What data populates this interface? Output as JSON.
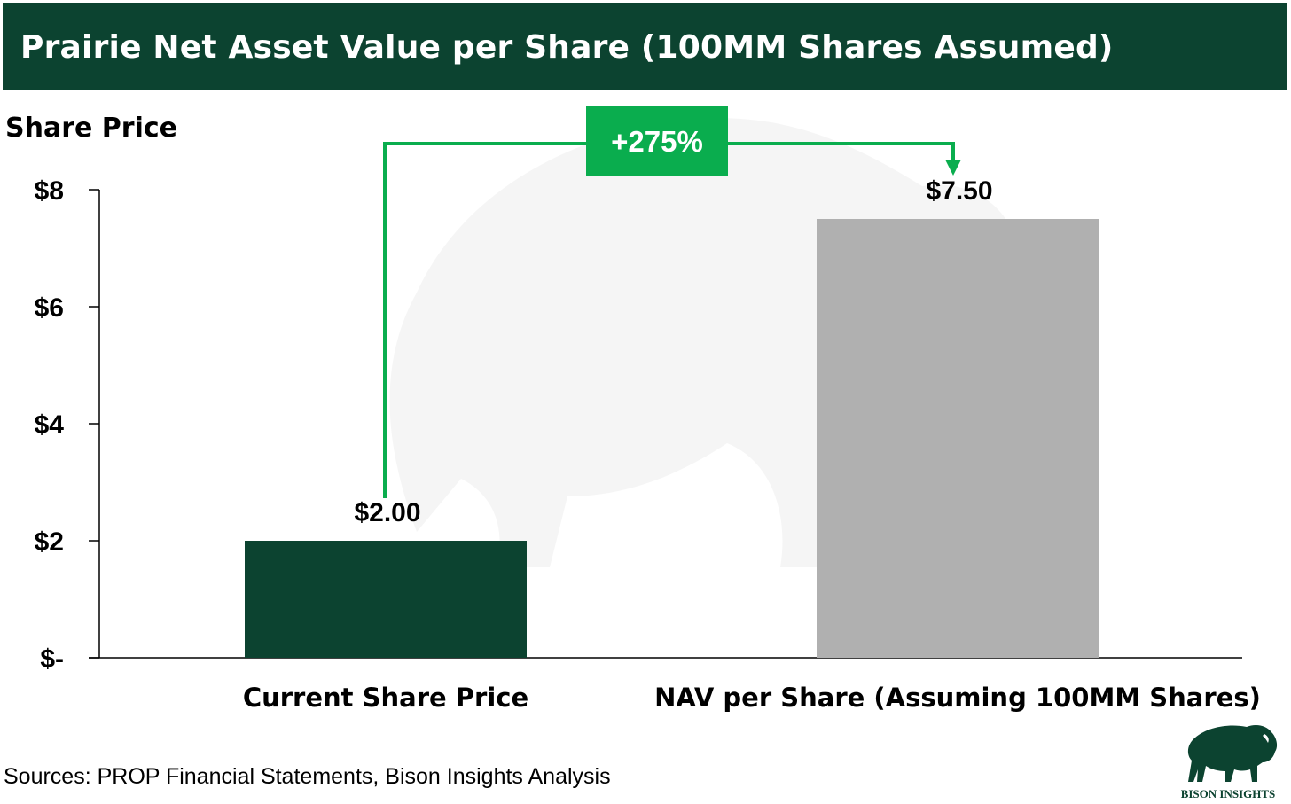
{
  "title": "Prairie Net Asset Value per Share (100MM Shares Assumed)",
  "source": "Sources: PROP Financial Statements, Bison Insights Analysis",
  "logo_text": "BISON INSIGHTS",
  "colors": {
    "title_bg": "#0c4330",
    "bar_current": "#0c4330",
    "bar_nav": "#b0b0b0",
    "annotation": "#0aad4e"
  },
  "chart_data": {
    "type": "bar",
    "title": "Prairie Net Asset Value per Share (100MM Shares Assumed)",
    "ylabel": "Share Price",
    "xlabel": "",
    "ylim": [
      0,
      8
    ],
    "yticks": [
      0,
      2,
      4,
      6,
      8
    ],
    "ytick_labels": [
      "$-",
      "$2",
      "$4",
      "$6",
      "$8"
    ],
    "categories": [
      "Current Share Price",
      "NAV per Share (Assuming 100MM Shares)"
    ],
    "values": [
      2.0,
      7.5
    ],
    "data_labels": [
      "$2.00",
      "$7.50"
    ],
    "annotation": {
      "label": "+275%",
      "from": "Current Share Price",
      "to": "NAV per Share (Assuming 100MM Shares)"
    },
    "grid": false,
    "legend": "none"
  }
}
